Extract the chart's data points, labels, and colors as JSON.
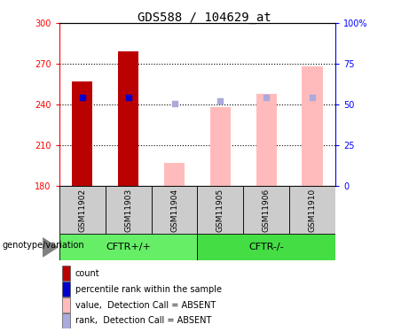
{
  "title": "GDS588 / 104629_at",
  "samples": [
    "GSM11902",
    "GSM11903",
    "GSM11904",
    "GSM11905",
    "GSM11906",
    "GSM11910"
  ],
  "ylim": [
    180,
    300
  ],
  "y2lim": [
    0,
    100
  ],
  "yticks": [
    180,
    210,
    240,
    270,
    300
  ],
  "y2ticks": [
    0,
    25,
    50,
    75,
    100
  ],
  "y2ticklabels": [
    "0",
    "25",
    "50",
    "75",
    "100%"
  ],
  "bar_values": [
    257,
    279,
    197,
    238,
    248,
    268
  ],
  "bar_colors": [
    "#bb0000",
    "#bb0000",
    "#ffbbbb",
    "#ffbbbb",
    "#ffbbbb",
    "#ffbbbb"
  ],
  "rank_values": [
    245,
    245,
    241,
    243,
    245,
    245
  ],
  "rank_colors": [
    "#0000cc",
    "#0000cc",
    "#aaaadd",
    "#aaaadd",
    "#aaaadd",
    "#aaaadd"
  ],
  "base": 180,
  "bar_width": 0.45,
  "groups": [
    {
      "label": "CFTR+/+",
      "indices": [
        0,
        1,
        2
      ],
      "color": "#66ee66"
    },
    {
      "label": "CFTR-/-",
      "indices": [
        3,
        4,
        5
      ],
      "color": "#44dd44"
    }
  ],
  "legend_items": [
    {
      "label": "count",
      "color": "#bb0000"
    },
    {
      "label": "percentile rank within the sample",
      "color": "#0000cc"
    },
    {
      "label": "value,  Detection Call = ABSENT",
      "color": "#ffbbbb"
    },
    {
      "label": "rank,  Detection Call = ABSENT",
      "color": "#aaaadd"
    }
  ],
  "genotype_label": "genotype/variation",
  "title_fontsize": 10,
  "tick_fontsize": 7,
  "label_fontsize": 7.5,
  "legend_fontsize": 7
}
